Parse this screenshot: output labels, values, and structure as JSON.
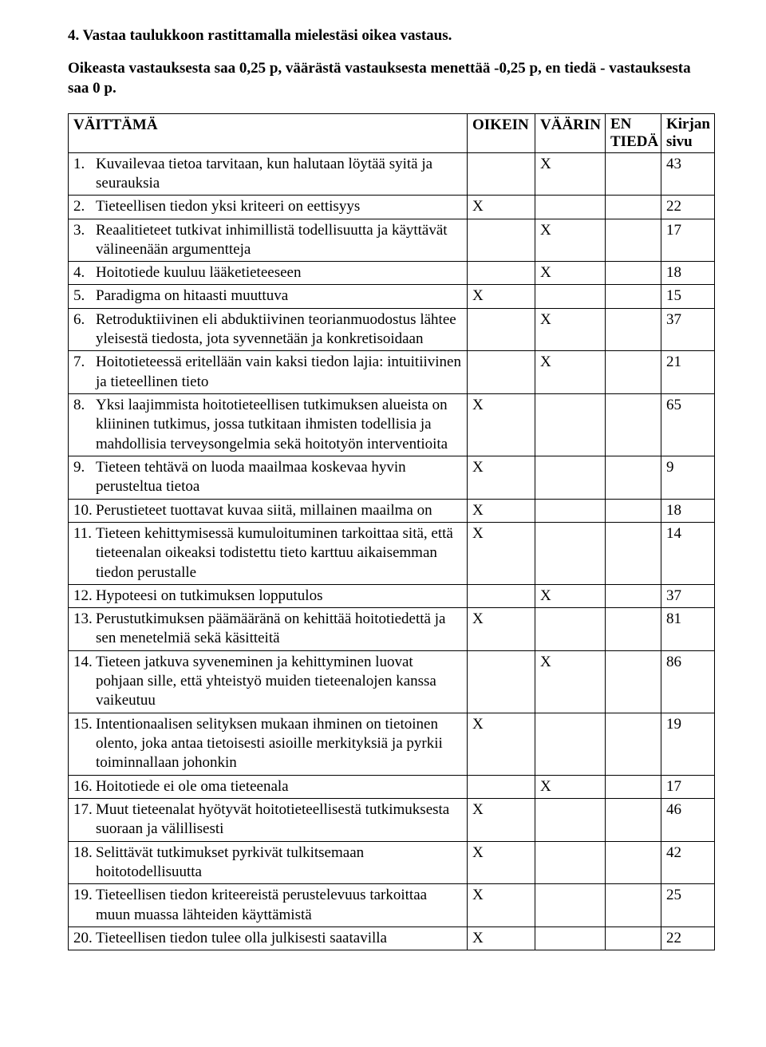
{
  "intro": {
    "title": "4. Vastaa taulukkoon rastittamalla mielestäsi oikea vastaus.",
    "subtitle": "Oikeasta vastauksesta saa 0,25 p, väärästä vastauksesta menettää -0,25 p, en tiedä - vastauksesta saa 0 p."
  },
  "headers": {
    "statement": "VÄITTÄMÄ",
    "correct": "OIKEIN",
    "wrong": "VÄÄRIN",
    "dontknow_l1": "EN",
    "dontknow_l2": "TIEDÄ",
    "page_l1": "Kirjan",
    "page_l2": "sivu"
  },
  "mark": "X",
  "rows": [
    {
      "num": "1.",
      "text": "Kuvailevaa tietoa tarvitaan, kun halutaan löytää syitä ja seurauksia",
      "answer": "wrong",
      "page": "43"
    },
    {
      "num": "2.",
      "text": "Tieteellisen tiedon yksi kriteeri on eettisyys",
      "answer": "correct",
      "page": "22"
    },
    {
      "num": "3.",
      "text": "Reaalitieteet tutkivat inhimillistä todellisuutta ja käyttävät välineenään argumentteja",
      "answer": "wrong",
      "page": "17"
    },
    {
      "num": "4.",
      "text": "Hoitotiede kuuluu lääketieteeseen",
      "answer": "wrong",
      "page": "18"
    },
    {
      "num": "5.",
      "text": "Paradigma on hitaasti muuttuva",
      "answer": "correct",
      "page": "15"
    },
    {
      "num": "6.",
      "text": "Retroduktiivinen eli abduktiivinen teorianmuodostus lähtee yleisestä tiedosta, jota syvennetään ja konkretisoidaan",
      "answer": "wrong",
      "page": "37"
    },
    {
      "num": "7.",
      "text": "Hoitotieteessä eritellään vain kaksi tiedon lajia: intuitiivinen ja tieteellinen tieto",
      "answer": "wrong",
      "page": "21"
    },
    {
      "num": "8.",
      "text": "Yksi laajimmista hoitotieteellisen tutkimuksen alueista on kliininen tutkimus, jossa tutkitaan ihmisten todellisia ja mahdollisia terveysongelmia sekä hoitotyön interventioita",
      "answer": "correct",
      "page": "65"
    },
    {
      "num": "9.",
      "text": "Tieteen tehtävä on luoda maailmaa koskevaa hyvin perusteltua tietoa",
      "answer": "correct",
      "page": "9"
    },
    {
      "num": "10.",
      "text": "Perustieteet tuottavat kuvaa siitä, millainen maailma on",
      "answer": "correct",
      "page": "18"
    },
    {
      "num": "11.",
      "text": "Tieteen kehittymisessä kumuloituminen tarkoittaa sitä, että tieteenalan oikeaksi todistettu tieto karttuu aikaisemman tiedon perustalle",
      "answer": "correct",
      "page": "14"
    },
    {
      "num": "12.",
      "text": "Hypoteesi on tutkimuksen lopputulos",
      "answer": "wrong",
      "page": "37"
    },
    {
      "num": "13.",
      "text": "Perustutkimuksen päämääränä on kehittää hoitotiedettä ja sen menetelmiä sekä käsitteitä",
      "answer": "correct",
      "page": "81"
    },
    {
      "num": "14.",
      "text": "Tieteen jatkuva syveneminen ja kehittyminen luovat pohjaan sille, että yhteistyö muiden tieteenalojen kanssa vaikeutuu",
      "answer": "wrong",
      "page": "86"
    },
    {
      "num": "15.",
      "text": "Intentionaalisen selityksen mukaan ihminen on tietoinen olento, joka antaa tietoisesti asioille merkityksiä ja pyrkii toiminnallaan johonkin",
      "answer": "correct",
      "page": "19"
    },
    {
      "num": "16.",
      "text": "Hoitotiede ei ole oma tieteenala",
      "answer": "wrong",
      "page": "17"
    },
    {
      "num": "17.",
      "text": "Muut tieteenalat hyötyvät hoitotieteellisestä tutkimuksesta suoraan ja välillisesti",
      "answer": "correct",
      "page": "46"
    },
    {
      "num": "18.",
      "text": "Selittävät tutkimukset pyrkivät tulkitsemaan hoitotodellisuutta",
      "answer": "correct",
      "page": "42"
    },
    {
      "num": "19.",
      "text": "Tieteellisen tiedon kriteereistä perustelevuus tarkoittaa muun muassa lähteiden käyttämistä",
      "answer": "correct",
      "page": "25"
    },
    {
      "num": "20.",
      "text": "Tieteellisen tiedon tulee olla julkisesti saatavilla",
      "answer": "correct",
      "page": "22"
    }
  ]
}
